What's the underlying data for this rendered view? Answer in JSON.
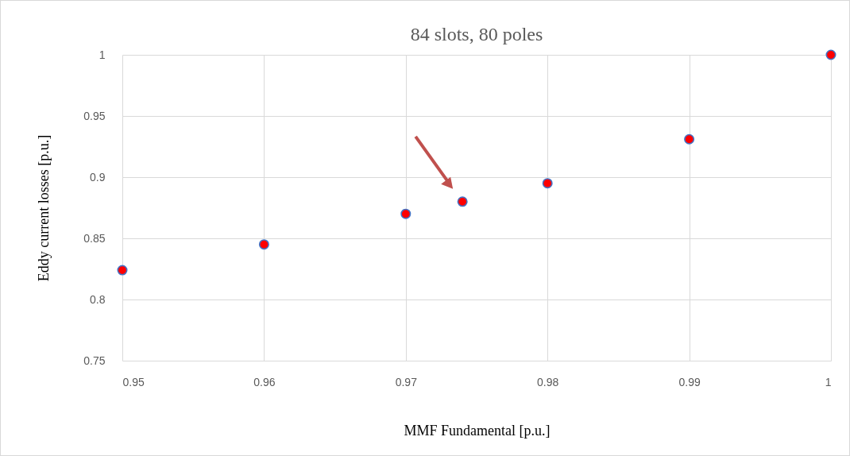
{
  "chart_data": {
    "type": "scatter",
    "title": "84 slots, 80 poles",
    "xlabel": "MMF Fundamental [p.u.]",
    "ylabel": "Eddy current losses [p.u.]",
    "x": [
      0.95,
      0.96,
      0.97,
      0.974,
      0.98,
      0.99,
      1
    ],
    "series": [
      {
        "color": "#ff0000",
        "values": [
          0.824,
          0.845,
          0.87,
          0.88,
          0.895,
          0.931,
          1
        ]
      }
    ],
    "xlim": [
      0.95,
      1
    ],
    "xticks": [
      0.95,
      0.96,
      0.97,
      0.98,
      0.99,
      1
    ],
    "ylim": [
      0.75,
      1
    ],
    "yticks": [
      0.75,
      0.8,
      0.85,
      0.9,
      0.95,
      1
    ],
    "grid": true,
    "marker": "circle"
  }
}
